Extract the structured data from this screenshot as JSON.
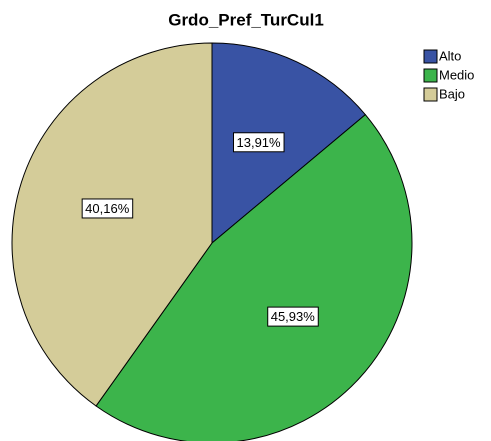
{
  "chart_data": {
    "type": "pie",
    "title": "Grdo_Pref_TurCul1",
    "categories": [
      "Alto",
      "Medio",
      "Bajo"
    ],
    "values": [
      13.91,
      45.93,
      40.16
    ],
    "value_labels": [
      "13,91%",
      "45,93%",
      "40,16%"
    ],
    "colors": [
      "#3953a4",
      "#3cb44b",
      "#d4cc99"
    ],
    "legend": "upper right"
  }
}
